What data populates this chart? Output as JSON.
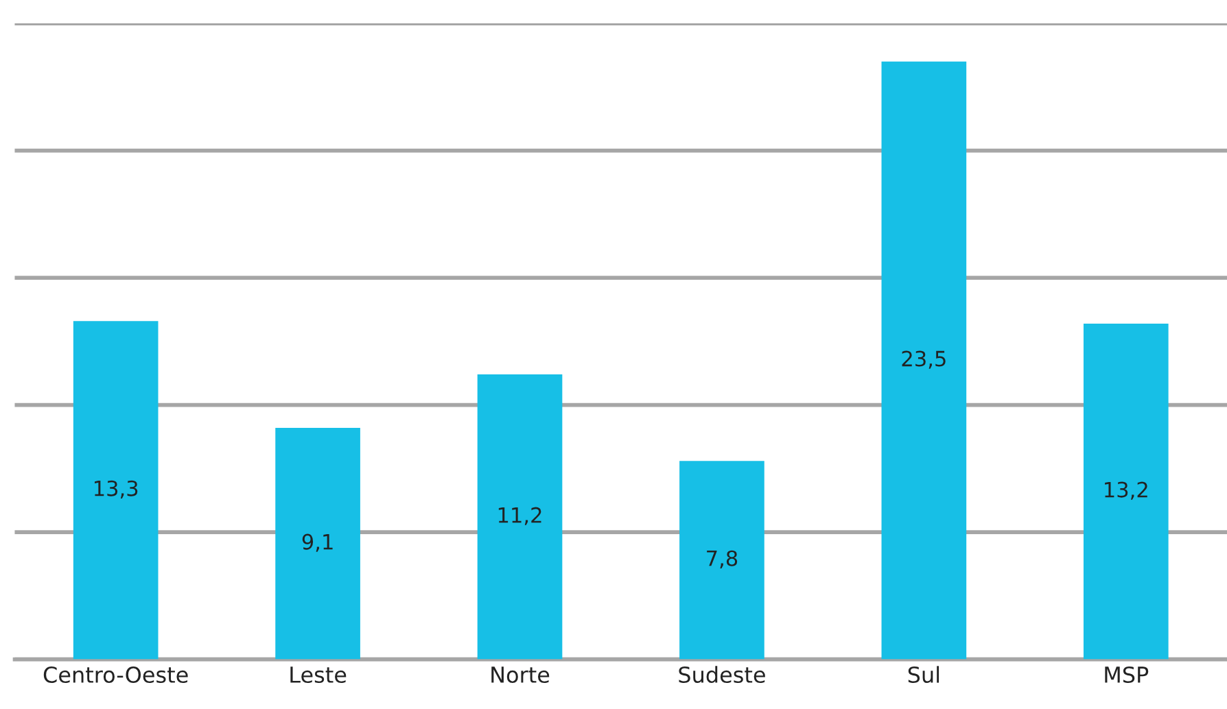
{
  "chart_data": {
    "type": "bar",
    "categories": [
      "Centro-Oeste",
      "Leste",
      "Norte",
      "Sudeste",
      "Sul",
      "MSP"
    ],
    "values": [
      13.3,
      9.1,
      11.2,
      7.8,
      23.5,
      13.2
    ],
    "value_labels": [
      "13,3",
      "9,1",
      "11,2",
      "7,8",
      "23,5",
      "13,2"
    ],
    "color": "#17bfe6",
    "ylim": [
      0,
      25
    ],
    "yticks": [
      {
        "value": 0,
        "label": null
      },
      {
        "value": 5,
        "label": null
      },
      {
        "value": 10,
        "label": null
      },
      {
        "value": 15,
        "label": null
      },
      {
        "value": 20,
        "label": null
      },
      {
        "value": 25,
        "label": null
      }
    ],
    "tick_labels": "x",
    "grid": "y"
  }
}
